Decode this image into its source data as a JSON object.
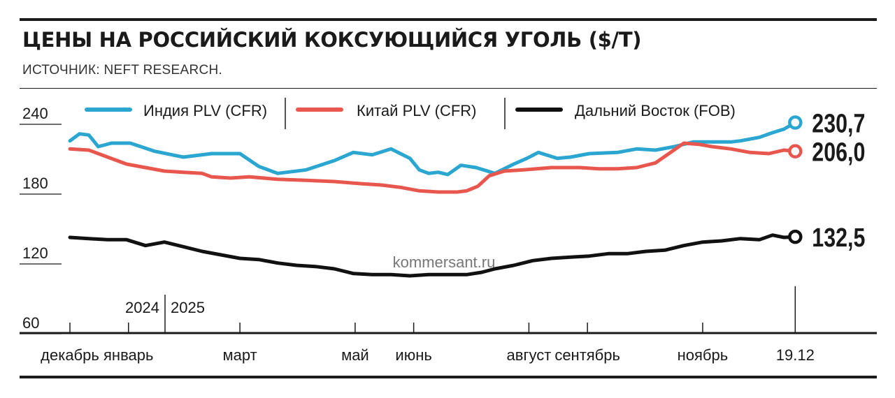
{
  "header": {
    "title": "ЦЕНЫ НА РОССИЙСКИЙ КОКСУЮЩИЙСЯ УГОЛЬ ($/Т)",
    "source": "ИСТОЧНИК: NEFT RESEARCH."
  },
  "watermark": "kommersant.ru",
  "colors": {
    "india": "#2aa6d0",
    "china": "#e8574e",
    "fareast": "#111111",
    "text": "#1a1a1a"
  },
  "chart_data": {
    "type": "line",
    "title": "ЦЕНЫ НА РОССИЙСКИЙ КОКСУЮЩИЙСЯ УГОЛЬ ($/Т)",
    "xlabel": "",
    "ylabel": "",
    "ylim": [
      60,
      240
    ],
    "yticks": [
      "240",
      "180",
      "120",
      "60"
    ],
    "ytick_values": [
      240,
      180,
      120,
      60
    ],
    "year_labels": [
      "2024",
      "2025"
    ],
    "xlim_days": [
      0,
      385
    ],
    "month_ticks": [
      {
        "label": "декабрь",
        "day": 0
      },
      {
        "label": "январь",
        "day": 31
      },
      {
        "label": "март",
        "day": 90
      },
      {
        "label": "май",
        "day": 151
      },
      {
        "label": "июнь",
        "day": 182
      },
      {
        "label": "август",
        "day": 243
      },
      {
        "label": "сентябрь",
        "day": 274
      },
      {
        "label": "ноябрь",
        "day": 335
      },
      {
        "label": "19.12",
        "day": 384
      }
    ],
    "series": [
      {
        "name": "Индия PLV (CFR)",
        "key": "india",
        "end_label": "230,7",
        "x": [
          0,
          5,
          10,
          15,
          22,
          32,
          45,
          60,
          75,
          90,
          100,
          110,
          125,
          140,
          150,
          160,
          170,
          180,
          185,
          190,
          195,
          200,
          207,
          215,
          225,
          235,
          242,
          248,
          258,
          265,
          275,
          290,
          300,
          310,
          320,
          330,
          340,
          350,
          355,
          365,
          372,
          378,
          384
        ],
        "y": [
          215,
          221,
          220,
          210,
          213,
          213,
          206,
          201,
          204,
          204,
          193,
          187,
          190,
          198,
          205,
          203,
          208,
          200,
          190,
          187,
          188,
          186,
          194,
          192,
          187,
          195,
          200,
          205,
          200,
          201,
          204,
          205,
          208,
          207,
          210,
          214,
          214,
          214,
          215,
          218,
          222,
          225,
          230.7
        ]
      },
      {
        "name": "Китай PLV (CFR)",
        "key": "china",
        "end_label": "206,0",
        "x": [
          0,
          10,
          20,
          30,
          40,
          50,
          60,
          70,
          75,
          85,
          95,
          110,
          125,
          140,
          155,
          165,
          175,
          185,
          195,
          205,
          210,
          213,
          216,
          222,
          230,
          240,
          255,
          270,
          280,
          290,
          300,
          310,
          318,
          325,
          333,
          340,
          350,
          360,
          370,
          378,
          384
        ],
        "y": [
          208,
          207,
          201,
          195,
          192,
          189,
          188,
          187,
          184,
          183,
          184,
          182,
          181,
          180,
          178,
          177,
          175,
          172,
          171,
          171,
          172,
          174,
          176,
          185,
          189,
          190,
          192,
          192,
          191,
          191,
          192,
          196,
          205,
          213,
          212,
          210,
          208,
          205,
          204,
          207,
          206.0
        ]
      },
      {
        "name": "Дальний Восток (FOB)",
        "key": "fareast",
        "end_label": "132,5",
        "x": [
          0,
          10,
          20,
          30,
          40,
          50,
          60,
          70,
          80,
          90,
          100,
          110,
          120,
          130,
          140,
          150,
          160,
          170,
          180,
          190,
          200,
          210,
          218,
          225,
          235,
          245,
          255,
          265,
          275,
          285,
          295,
          305,
          315,
          325,
          335,
          345,
          355,
          365,
          372,
          378,
          384
        ],
        "y": [
          132,
          131,
          130,
          130,
          125,
          128,
          124,
          120,
          117,
          114,
          113,
          110,
          108,
          107,
          105,
          101,
          100,
          100,
          99,
          100,
          100,
          100,
          102,
          105,
          108,
          112,
          114,
          115,
          116,
          118,
          118,
          120,
          121,
          125,
          128,
          129,
          131,
          130,
          134,
          132,
          132.5
        ]
      }
    ]
  }
}
